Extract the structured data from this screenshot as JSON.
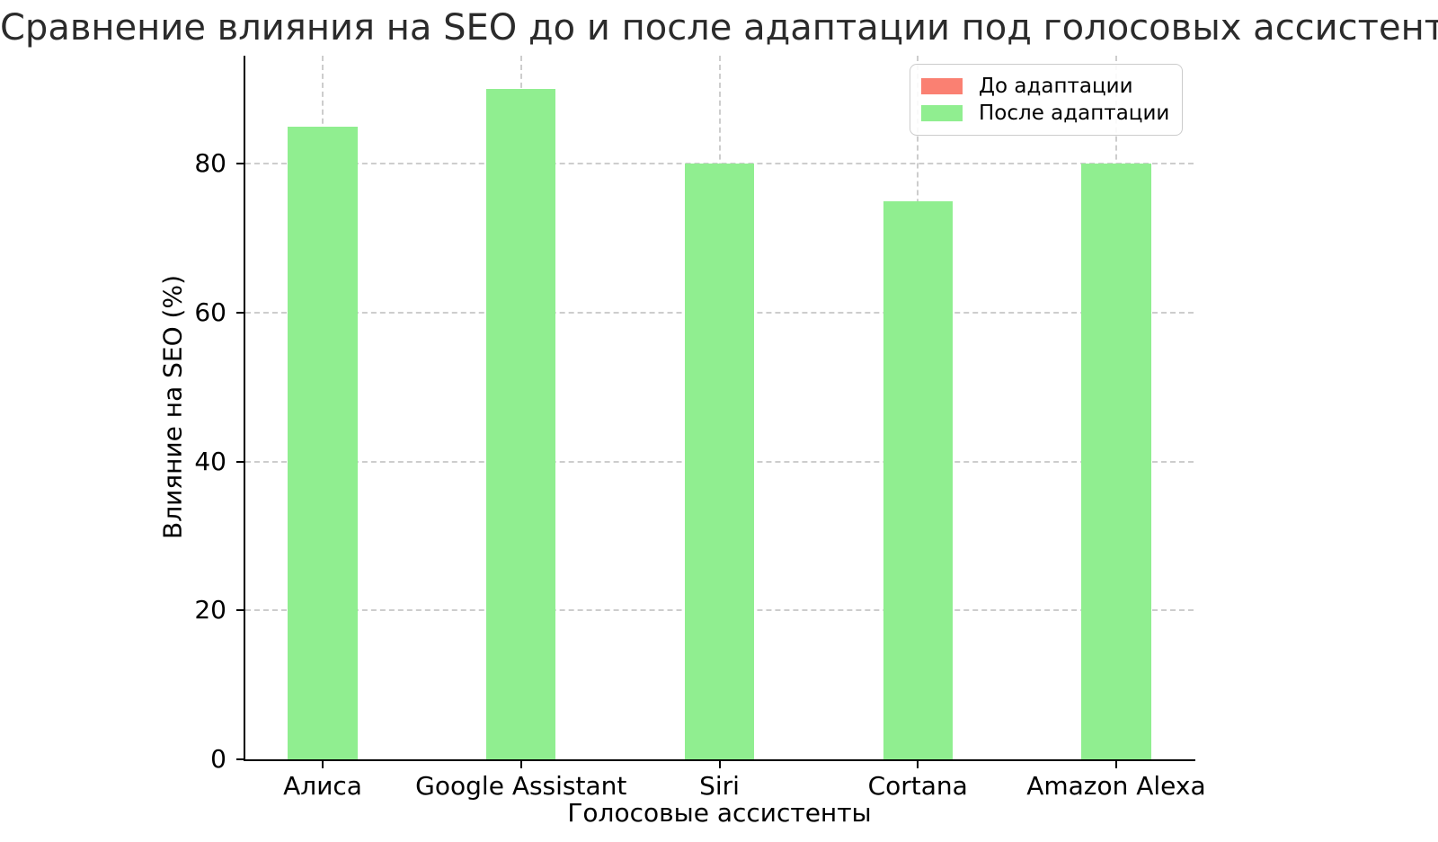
{
  "chart_data": {
    "type": "bar",
    "title": "Сравнение влияния на SEO до и после адаптации под голосовых ассистентов",
    "xlabel": "Голосовые ассистенты",
    "ylabel": "Влияние на SEO (%)",
    "categories": [
      "Алиса",
      "Google Assistant",
      "Siri",
      "Cortana",
      "Amazon Alexa"
    ],
    "series": [
      {
        "name": "До адаптации",
        "color": "#FA8072",
        "values": null,
        "bars_visible": false
      },
      {
        "name": "После адаптации",
        "color": "#90EE90",
        "values": [
          85,
          90,
          80,
          75,
          80
        ],
        "bars_visible": true
      }
    ],
    "yticks": [
      0,
      20,
      40,
      60,
      80
    ],
    "ytick_labels": [
      "0",
      "20",
      "40",
      "60",
      "80"
    ],
    "ylim": [
      0,
      94.5
    ],
    "grid": "dashed, horizontal and vertical",
    "legend_position": "upper right"
  },
  "style": {
    "grid_color": "#cdcdcd",
    "axis_color": "#000000",
    "title_color": "#2b2b2b",
    "background": "#ffffff",
    "legend_border": "#cccccc"
  }
}
